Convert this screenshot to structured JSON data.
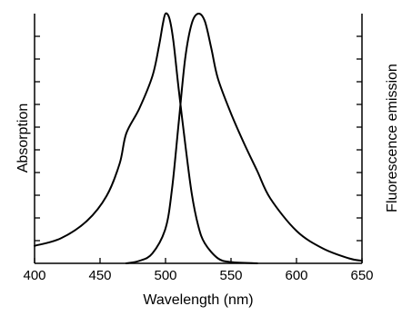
{
  "chart_data": {
    "type": "line",
    "xlabel": "Wavelength (nm)",
    "ylabel_left": "Absorption",
    "ylabel_right": "Fluorescence emission",
    "xlim": [
      400,
      650
    ],
    "ylim": [
      0,
      1
    ],
    "x_ticks": [
      400,
      450,
      500,
      550,
      600,
      650
    ],
    "y_tick_count": 10,
    "grid": false,
    "legend": "none",
    "series": [
      {
        "axis": "left",
        "x": [
          400,
          420,
          440,
          455,
          465,
          470,
          480,
          490,
          495,
          498,
          500,
          503,
          506,
          510,
          515,
          520,
          525,
          530,
          540,
          550,
          570
        ],
        "y": [
          0.07,
          0.1,
          0.17,
          0.27,
          0.4,
          0.52,
          0.62,
          0.75,
          0.87,
          0.96,
          1.0,
          0.98,
          0.89,
          0.7,
          0.48,
          0.28,
          0.15,
          0.08,
          0.02,
          0.005,
          0.0
        ]
      },
      {
        "axis": "right",
        "x": [
          470,
          480,
          490,
          500,
          505,
          510,
          515,
          520,
          525,
          530,
          535,
          540,
          550,
          560,
          570,
          580,
          600,
          620,
          640,
          650
        ],
        "y": [
          0.0,
          0.01,
          0.04,
          0.14,
          0.3,
          0.56,
          0.82,
          0.96,
          1.0,
          0.97,
          0.86,
          0.74,
          0.6,
          0.48,
          0.37,
          0.26,
          0.13,
          0.06,
          0.02,
          0.01
        ]
      }
    ]
  }
}
